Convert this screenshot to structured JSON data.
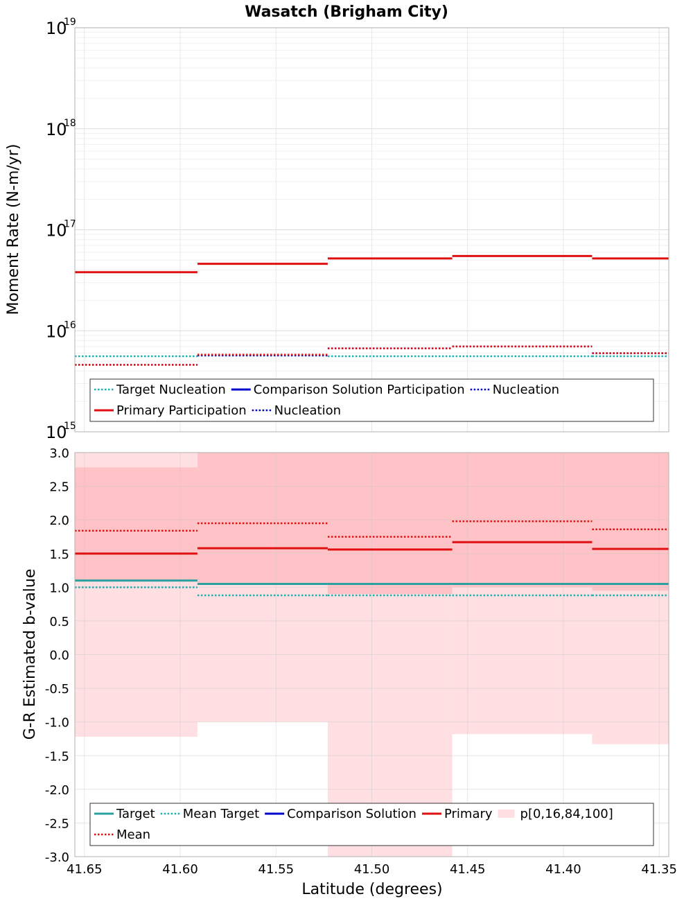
{
  "chart_data": [
    {
      "type": "line",
      "subtype": "step",
      "title": "Wasatch (Brigham City)",
      "xlabel": "Latitude (degrees)",
      "ylabel": "Moment Rate (N-m/yr)",
      "yscale": "log",
      "ylim": [
        1000000000000000.0,
        1e+19
      ],
      "xlim": [
        41.655,
        41.345
      ],
      "y_tick_base": "10",
      "y_ticks": [
        {
          "value": 1000000000000000.0,
          "exp": "15"
        },
        {
          "value": 1e+16,
          "exp": "16"
        },
        {
          "value": 1e+17,
          "exp": "17"
        },
        {
          "value": 1e+18,
          "exp": "18"
        },
        {
          "value": 1e+19,
          "exp": "19"
        }
      ],
      "bin_edges": [
        41.655,
        41.591,
        41.523,
        41.458,
        41.385,
        41.345
      ],
      "series": [
        {
          "name": "Target Nucleation",
          "color": "#1ab0b0",
          "dash": "dotted",
          "values": [
            5600000000000000.0,
            5700000000000000.0,
            5600000000000000.0,
            5600000000000000.0,
            5600000000000000.0
          ]
        },
        {
          "name": "Comparison Solution Participation",
          "color": "#0000cc",
          "dash": "solid",
          "values": []
        },
        {
          "name": "Nucleation",
          "color": "#0000cc",
          "dash": "dotted",
          "values": [
            4600000000000000.0,
            5700000000000000.0,
            6700000000000000.0,
            7000000000000000.0,
            6000000000000000.0
          ]
        },
        {
          "name": "Primary Participation",
          "color": "#e01010",
          "dash": "solid",
          "values": [
            3.8e+16,
            4.6e+16,
            5.2e+16,
            5.5e+16,
            5.2e+16
          ]
        },
        {
          "name": "Nucleation",
          "color": "#e01010",
          "dash": "dotted",
          "values": [
            4600000000000000.0,
            5800000000000000.0,
            6700000000000000.0,
            7000000000000000.0,
            6000000000000000.0
          ]
        }
      ],
      "legend_position": "bottom",
      "legend": [
        [
          "Target Nucleation",
          "Comparison Solution Participation",
          "Nucleation"
        ],
        [
          "Primary Participation",
          "Nucleation"
        ]
      ]
    },
    {
      "type": "line",
      "subtype": "step",
      "xlabel": "Latitude (degrees)",
      "ylabel": "G-R Estimated b-value",
      "ylim": [
        -3.0,
        3.0
      ],
      "xlim": [
        41.655,
        41.345
      ],
      "x_ticks": [
        "41.65",
        "41.60",
        "41.55",
        "41.50",
        "41.45",
        "41.40",
        "41.35"
      ],
      "x_tick_values": [
        41.65,
        41.6,
        41.55,
        41.5,
        41.45,
        41.4,
        41.35
      ],
      "y_ticks": [
        "-3.0",
        "-2.5",
        "-2.0",
        "-1.5",
        "-1.0",
        "-0.5",
        "0.0",
        "0.5",
        "1.0",
        "1.5",
        "2.0",
        "2.5",
        "3.0"
      ],
      "bin_edges": [
        41.655,
        41.591,
        41.523,
        41.458,
        41.385,
        41.345
      ],
      "bands": {
        "name": "p[0,16,84,100]",
        "p0": [
          -1.22,
          -1.0,
          -3.0,
          -1.18,
          -1.33
        ],
        "p16": [
          1.1,
          1.05,
          0.9,
          1.0,
          0.95
        ],
        "p84": [
          2.78,
          3.0,
          3.0,
          3.0,
          3.0
        ],
        "p100": [
          3.0,
          3.0,
          3.0,
          3.0,
          3.0
        ]
      },
      "series": [
        {
          "name": "Target",
          "color": "#2aa0a0",
          "dash": "solid",
          "values": [
            1.1,
            1.05,
            1.05,
            1.05,
            1.05
          ]
        },
        {
          "name": "Mean Target",
          "color": "#1ab0b0",
          "dash": "dotted",
          "values": [
            1.0,
            0.88,
            0.88,
            0.88,
            0.88
          ]
        },
        {
          "name": "Comparison Solution",
          "color": "#0000cc",
          "dash": "solid",
          "values": []
        },
        {
          "name": "Primary",
          "color": "#e01010",
          "dash": "solid",
          "values": [
            1.5,
            1.58,
            1.56,
            1.67,
            1.57
          ]
        },
        {
          "name": "Mean",
          "color": "#e01010",
          "dash": "dotted",
          "values": [
            1.84,
            1.95,
            1.75,
            1.98,
            1.86
          ]
        }
      ],
      "legend_position": "bottom",
      "legend": [
        [
          "Target",
          "Mean Target",
          "Comparison Solution",
          "Primary",
          "p[0,16,84,100]"
        ],
        [
          "Mean"
        ]
      ]
    }
  ]
}
